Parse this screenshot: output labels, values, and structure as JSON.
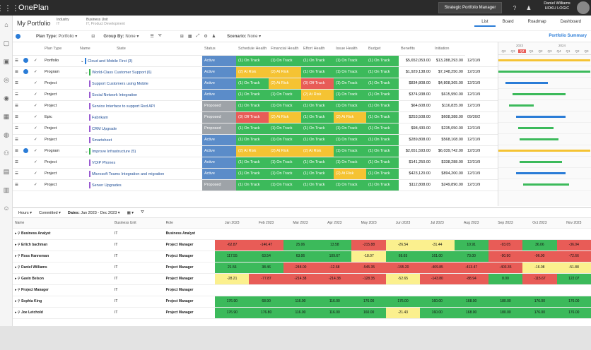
{
  "app": {
    "title": "OnePlan",
    "switcher": "Strategic Portfolio Manager",
    "help": "?",
    "user_name": "Daniel Williams",
    "user_org": "HOKU LOGIC"
  },
  "header": {
    "title": "My Portfolio",
    "industry_label": "Industry",
    "industry_val": "IT",
    "bu_label": "Business Unit",
    "bu_val": "IT, Product Development",
    "tabs": [
      "List",
      "Board",
      "Roadmap",
      "Dashboard"
    ]
  },
  "toolbar": {
    "plan_type": "Plan Type:",
    "plan_type_val": "Portfolio",
    "group_by": "Group By:",
    "group_by_val": "None",
    "scenario": "Scenario:",
    "scenario_val": "None",
    "summary": "Portfolio Summary"
  },
  "columns": [
    "Plan Type",
    "Name",
    "State",
    "Status",
    "Schedule Health",
    "Financial Health",
    "Effort Health",
    "Issue Health",
    "Budget",
    "Benefits",
    "Initiation"
  ],
  "rows": [
    {
      "type": "Portfolio",
      "name": "Cloud and Mobile First (3)",
      "state": "Active",
      "s": [
        "(1) On Track",
        "(1) On Track",
        "(1) On Track",
        "(1) On Track",
        "(1) On Track"
      ],
      "budget": "$5,652,053.00",
      "benefit": "$13,288,293.00",
      "init": "12/31/9",
      "lvl": 0,
      "bar": "#2a7cd7",
      "grp": true
    },
    {
      "type": "Program",
      "name": "World-Class Customer Support (6)",
      "state": "Active",
      "s": [
        "(2) At Risk",
        "(2) At Risk",
        "(1) On Track",
        "(1) On Track",
        "(1) On Track"
      ],
      "budget": "$1,929,138.00",
      "benefit": "$7,248,250.00",
      "init": "12/31/9",
      "lvl": 1,
      "bar": "#35b34a",
      "grp": true
    },
    {
      "type": "Project",
      "name": "Support Customers using Mobile",
      "state": "Active",
      "s": [
        "(1) On Track",
        "(2) At Risk",
        "(3) Off Track",
        "(1) On Track",
        "(1) On Track"
      ],
      "budget": "$834,808.00",
      "benefit": "$4,808,365.00",
      "init": "12/31/9",
      "lvl": 2,
      "bar": "#9a5bd1"
    },
    {
      "type": "Project",
      "name": "Social Network Integration",
      "state": "Active",
      "s": [
        "(1) On Track",
        "(1) On Track",
        "(2) At Risk",
        "(1) On Track",
        "(1) On Track"
      ],
      "budget": "$374,938.00",
      "benefit": "$615,950.00",
      "init": "12/31/9",
      "lvl": 2,
      "bar": "#9a5bd1"
    },
    {
      "type": "Project",
      "name": "Service Interface to support Red API",
      "state": "Proposed",
      "s": [
        "(1) On Track",
        "(1) On Track",
        "(1) On Track",
        "(1) On Track",
        "(1) On Track"
      ],
      "budget": "$64,608.00",
      "benefit": "$116,835.00",
      "init": "12/31/9",
      "lvl": 2,
      "bar": "#9a5bd1"
    },
    {
      "type": "Epic",
      "name": "Fabrikam",
      "state": "Proposed",
      "s": [
        "(3) Off Track",
        "(2) At Risk",
        "(1) On Track",
        "(2) At Risk",
        "(1) On Track"
      ],
      "budget": "$253,508.00",
      "benefit": "$608,388.00",
      "init": "09/30/2",
      "lvl": 2,
      "bar": "#9a5bd1"
    },
    {
      "type": "Project",
      "name": "CRM Upgrade",
      "state": "Proposed",
      "s": [
        "(1) On Track",
        "(1) On Track",
        "(1) On Track",
        "(1) On Track",
        "(1) On Track"
      ],
      "budget": "$98,430.00",
      "benefit": "$235,050.00",
      "init": "12/31/9",
      "lvl": 2,
      "bar": "#9a5bd1"
    },
    {
      "type": "Project",
      "name": "Smartsheet",
      "state": "Active",
      "s": [
        "(1) On Track",
        "(1) On Track",
        "(1) On Track",
        "(1) On Track",
        "(1) On Track"
      ],
      "budget": "$289,808.00",
      "benefit": "$568,108.00",
      "init": "12/31/9",
      "lvl": 2,
      "bar": "#9a5bd1"
    },
    {
      "type": "Program",
      "name": "Improve Infrastructure (5)",
      "state": "Active",
      "s": [
        "(2) At Risk",
        "(2) At Risk",
        "(2) At Risk",
        "(1) On Track",
        "(1) On Track"
      ],
      "budget": "$2,651,593.00",
      "benefit": "$6,039,742.00",
      "init": "12/31/9",
      "lvl": 1,
      "bar": "#35b34a",
      "grp": true
    },
    {
      "type": "Project",
      "name": "VOIP Phones",
      "state": "Active",
      "s": [
        "(1) On Track",
        "(1) On Track",
        "(1) On Track",
        "(1) On Track",
        "(1) On Track"
      ],
      "budget": "$141,250.00",
      "benefit": "$338,288.00",
      "init": "12/31/9",
      "lvl": 2,
      "bar": "#9a5bd1"
    },
    {
      "type": "Project",
      "name": "Microsoft Teams Integration and migration",
      "state": "Active",
      "s": [
        "(1) On Track",
        "(1) On Track",
        "(1) On Track",
        "(2) At Risk",
        "(1) On Track"
      ],
      "budget": "$423,120.00",
      "benefit": "$894,200.00",
      "init": "12/31/9",
      "lvl": 2,
      "bar": "#9a5bd1"
    },
    {
      "type": "Project",
      "name": "Server Upgrades",
      "state": "Proposed",
      "s": [
        "(1) On Track",
        "(1) On Track",
        "(1) On Track",
        "(1) On Track",
        "(1) On Track"
      ],
      "budget": "$112,808.00",
      "benefit": "$249,890.00",
      "init": "12/31/9",
      "lvl": 2,
      "bar": "#9a5bd1"
    }
  ],
  "gantt": {
    "years": [
      "2023",
      "2024"
    ],
    "quarters": [
      "Q2",
      "Q3",
      "Q4",
      "Q1",
      "Q2",
      "Q3",
      "Q4",
      "Q1",
      "Q2",
      "Q3"
    ],
    "today": "2024"
  },
  "lower": {
    "units": "Hours",
    "committed": "Committed",
    "dates": "Dates:",
    "dates_val": "Jan 2023 - Dec 2023",
    "headers": [
      "Name",
      "Business Unit",
      "Role",
      "Jan 2023",
      "Feb 2023",
      "Mar 2023",
      "Apr 2023",
      "May 2023",
      "Jun 2023",
      "Jul 2023",
      "Aug 2023",
      "Sep 2023",
      "Oct 2023",
      "Nov 2023"
    ],
    "rows": [
      {
        "name": "Business Analyst",
        "bu": "IT",
        "role": "Business Analyst",
        "v": [
          "",
          "",
          "",
          "",
          "",
          "",
          "",
          "",
          "",
          "",
          ""
        ],
        "c": [
          "",
          "",
          "",
          "",
          "",
          "",
          "",
          "",
          "",
          "",
          ""
        ]
      },
      {
        "name": "Erlich bachman",
        "bu": "IT",
        "role": "Project Manager",
        "v": [
          "-62.87",
          "-146.47",
          "25.06",
          "13.58",
          "-215.88",
          "-26.54",
          "-31.44",
          "10.91",
          "-93.05",
          "36.06",
          "-36.04"
        ],
        "c": [
          "r",
          "r",
          "g",
          "g",
          "r",
          "y",
          "y",
          "g",
          "r",
          "g",
          "r"
        ]
      },
      {
        "name": "Ross Hanneman",
        "bu": "IT",
        "role": "Project Manager",
        "v": [
          "117.55",
          "63.54",
          "63.06",
          "109.67",
          "-18.07",
          "69.65",
          "161.00",
          "73.00",
          "-90.90",
          "-96.00",
          "-72.66"
        ],
        "c": [
          "g",
          "g",
          "g",
          "g",
          "y",
          "g",
          "g",
          "g",
          "r",
          "r",
          "r"
        ]
      },
      {
        "name": "Daniel Williams",
        "bu": "IT",
        "role": "Project Manager",
        "v": [
          "21.56",
          "38.46",
          "-248.00",
          "-12.68",
          "-545.35",
          "-195.20",
          "-409.85",
          "-413.47",
          "-403.35",
          "-16.08",
          "-51.88"
        ],
        "c": [
          "g",
          "g",
          "r",
          "r",
          "r",
          "r",
          "r",
          "r",
          "r",
          "y",
          "y"
        ]
      },
      {
        "name": "Gavin Belson",
        "bu": "IT",
        "role": "Project Manager",
        "v": [
          "-28.21",
          "-77.87",
          "-214.38",
          "-214.38",
          "-128.35",
          "-52.65",
          "-143.80",
          "-88.94",
          "8.00",
          "-115.67",
          "122.07"
        ],
        "c": [
          "y",
          "r",
          "r",
          "r",
          "r",
          "y",
          "r",
          "r",
          "g",
          "r",
          "g"
        ]
      },
      {
        "name": "Project Manager",
        "bu": "IT",
        "role": "Project Manager",
        "v": [
          "",
          "",
          "",
          "",
          "",
          "",
          "",
          "",
          "",
          "",
          ""
        ],
        "c": [
          "",
          "",
          "",
          "",
          "",
          "",
          "",
          "",
          "",
          "",
          ""
        ]
      },
      {
        "name": "Sophia King",
        "bu": "IT",
        "role": "Project Manager",
        "v": [
          "176.90",
          "68.90",
          "116.00",
          "116.00",
          "176.00",
          "176.00",
          "160.00",
          "168.00",
          "180.00",
          "176.00",
          "176.00"
        ],
        "c": [
          "g",
          "g",
          "g",
          "g",
          "g",
          "g",
          "g",
          "g",
          "g",
          "g",
          "g"
        ]
      },
      {
        "name": "Joe Letchold",
        "bu": "IT",
        "role": "Project Manager",
        "v": [
          "176.90",
          "176.80",
          "116.00",
          "116.00",
          "160.00",
          "-21.43",
          "160.00",
          "168.00",
          "180.00",
          "176.00",
          "176.00"
        ],
        "c": [
          "g",
          "g",
          "g",
          "g",
          "g",
          "y",
          "g",
          "g",
          "g",
          "g",
          "g"
        ]
      }
    ]
  },
  "colors": {
    "green": "#3cba5b",
    "yellow": "#f5c333",
    "red": "#e85c57",
    "lgreen": "#8ed68f",
    "lyellow": "#fbf08e",
    "active": "#5b8cc9",
    "proposed": "#9ea3a8"
  }
}
